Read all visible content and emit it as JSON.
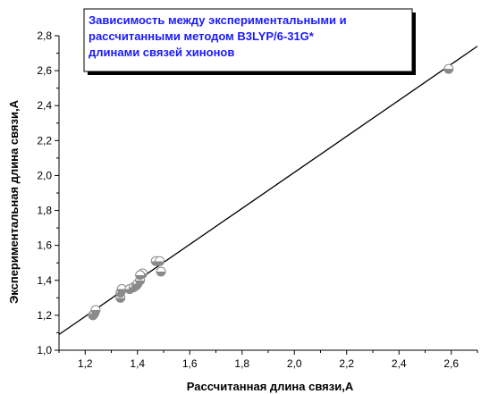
{
  "chart_data": {
    "type": "scatter",
    "title_lines": [
      "Зависимость между экспериментальными и",
      "рассчитанными методом B3LYP/6-31G*",
      "длинами связей хинонов"
    ],
    "xlabel": "Рассчитанная длина связи,A",
    "ylabel": "Экспериментальная длина связи,A",
    "xlim": [
      1.1,
      2.7
    ],
    "ylim": [
      1.0,
      2.8
    ],
    "x_ticks": [
      "1,2",
      "1,4",
      "1,6",
      "1,8",
      "2,0",
      "2,2",
      "2,4",
      "2,6"
    ],
    "y_ticks": [
      "1,0",
      "1,2",
      "1,4",
      "1,6",
      "1,8",
      "2,0",
      "2,2",
      "2,4",
      "2,6",
      "2,8"
    ],
    "x_tick_values": [
      1.2,
      1.4,
      1.6,
      1.8,
      2.0,
      2.2,
      2.4,
      2.6
    ],
    "y_tick_values": [
      1.0,
      1.2,
      1.4,
      1.6,
      1.8,
      2.0,
      2.2,
      2.4,
      2.6,
      2.8
    ],
    "points": [
      {
        "x": 1.23,
        "y": 1.2
      },
      {
        "x": 1.235,
        "y": 1.21
      },
      {
        "x": 1.24,
        "y": 1.23
      },
      {
        "x": 1.335,
        "y": 1.3
      },
      {
        "x": 1.335,
        "y": 1.33
      },
      {
        "x": 1.34,
        "y": 1.35
      },
      {
        "x": 1.37,
        "y": 1.35
      },
      {
        "x": 1.385,
        "y": 1.36
      },
      {
        "x": 1.395,
        "y": 1.37
      },
      {
        "x": 1.4,
        "y": 1.38
      },
      {
        "x": 1.41,
        "y": 1.4
      },
      {
        "x": 1.42,
        "y": 1.44
      },
      {
        "x": 1.41,
        "y": 1.43
      },
      {
        "x": 1.47,
        "y": 1.51
      },
      {
        "x": 1.485,
        "y": 1.51
      },
      {
        "x": 1.49,
        "y": 1.45
      },
      {
        "x": 2.59,
        "y": 2.61
      }
    ],
    "fit_line": {
      "x": [
        1.1,
        2.7
      ],
      "y": [
        1.09,
        2.74
      ]
    },
    "marker_color": "#8a8a8a",
    "title_color": "#1a1aff",
    "grid": false
  }
}
